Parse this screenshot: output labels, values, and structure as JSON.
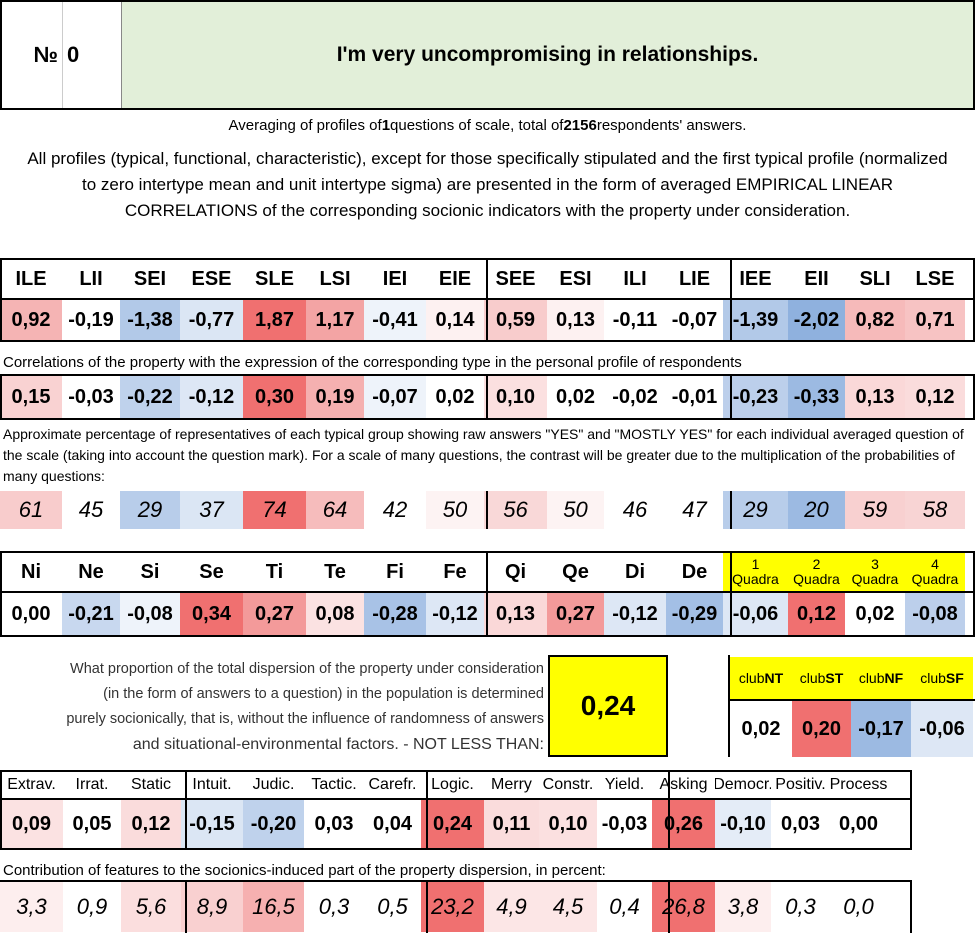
{
  "header": {
    "num_label": "№",
    "num_value": "0",
    "title": "I'm very uncompromising in relationships."
  },
  "summary": {
    "p1": "Averaging of profiles of ",
    "questions": "1",
    "p2": " questions of scale, total of ",
    "respondents": "2156",
    "p3": " respondents' answers."
  },
  "intro": "All profiles (typical, functional, characteristic), except for those specifically stipulated and the first typical profile (normalized to zero intertype mean and unit intertype sigma) are presented in the form of averaged EMPIRICAL LINEAR CORRELATIONS of the corresponding socionic indicators with the property under consideration.",
  "types": [
    "ILE",
    "LII",
    "SEI",
    "ESE",
    "SLE",
    "LSI",
    "IEI",
    "EIE",
    "SEE",
    "ESI",
    "ILI",
    "LIE",
    "IEE",
    "EII",
    "SLI",
    "LSE"
  ],
  "type_profile": [
    {
      "v": "0,92",
      "c": "#f5b4b4"
    },
    {
      "v": "-0,19",
      "c": "#ffffff"
    },
    {
      "v": "-1,38",
      "c": "#b2c9e8"
    },
    {
      "v": "-0,77",
      "c": "#dbe6f4"
    },
    {
      "v": "1,87",
      "c": "#f07070"
    },
    {
      "v": "1,17",
      "c": "#f3a4a4"
    },
    {
      "v": "-0,41",
      "c": "#eef3fa"
    },
    {
      "v": "0,14",
      "c": "#fdf1f1"
    },
    {
      "v": "0,59",
      "c": "#f8cccc"
    },
    {
      "v": "0,13",
      "c": "#fdf1f1"
    },
    {
      "v": "-0,11",
      "c": "#ffffff"
    },
    {
      "v": "-0,07",
      "c": "#ffffff"
    },
    {
      "v": "-1,39",
      "c": "#b2c9e8"
    },
    {
      "v": "-2,02",
      "c": "#8fb1de"
    },
    {
      "v": "0,82",
      "c": "#f6baba"
    },
    {
      "v": "0,71",
      "c": "#f7c3c3"
    }
  ],
  "corr_caption": "Correlations of the property with the expression of the corresponding type in the personal profile of respondents",
  "type_corr": [
    {
      "v": "0,15",
      "c": "#f9d2d2"
    },
    {
      "v": "-0,03",
      "c": "#ffffff"
    },
    {
      "v": "-0,22",
      "c": "#bfd2ec"
    },
    {
      "v": "-0,12",
      "c": "#dde7f5"
    },
    {
      "v": "0,30",
      "c": "#f07070"
    },
    {
      "v": "0,19",
      "c": "#f5b0b0"
    },
    {
      "v": "-0,07",
      "c": "#eef3fa"
    },
    {
      "v": "0,02",
      "c": "#ffffff"
    },
    {
      "v": "0,10",
      "c": "#fbe0e0"
    },
    {
      "v": "0,02",
      "c": "#ffffff"
    },
    {
      "v": "-0,02",
      "c": "#ffffff"
    },
    {
      "v": "-0,01",
      "c": "#ffffff"
    },
    {
      "v": "-0,23",
      "c": "#bccfeb"
    },
    {
      "v": "-0,33",
      "c": "#9cbae2"
    },
    {
      "v": "0,13",
      "c": "#fad8d8"
    },
    {
      "v": "0,12",
      "c": "#fadcdc"
    }
  ],
  "pct_caption": "Approximate percentage of representatives of each typical group showing raw answers \"YES\" and \"MOSTLY YES\" for each individual averaged question of the scale (taking into account the question mark). For a scale of many questions, the contrast will be greater due to the multiplication of the probabilities of many questions:",
  "type_pct": [
    {
      "v": "61",
      "c": "#f8cccc"
    },
    {
      "v": "45",
      "c": "#ffffff"
    },
    {
      "v": "29",
      "c": "#b8cdea"
    },
    {
      "v": "37",
      "c": "#dbe6f4"
    },
    {
      "v": "74",
      "c": "#f07070"
    },
    {
      "v": "64",
      "c": "#f6bcbc"
    },
    {
      "v": "42",
      "c": "#ffffff"
    },
    {
      "v": "50",
      "c": "#fdf3f3"
    },
    {
      "v": "56",
      "c": "#f9d8d8"
    },
    {
      "v": "50",
      "c": "#fdf3f3"
    },
    {
      "v": "46",
      "c": "#ffffff"
    },
    {
      "v": "47",
      "c": "#ffffff"
    },
    {
      "v": "29",
      "c": "#b8cdea"
    },
    {
      "v": "20",
      "c": "#9cbae2"
    },
    {
      "v": "59",
      "c": "#f8d0d0"
    },
    {
      "v": "58",
      "c": "#f8d4d4"
    }
  ],
  "functions": [
    "Ni",
    "Ne",
    "Si",
    "Se",
    "Ti",
    "Te",
    "Fi",
    "Fe",
    "Qi",
    "Qe",
    "Di",
    "De"
  ],
  "quadras": [
    {
      "n": "1",
      "l": "Quadra"
    },
    {
      "n": "2",
      "l": "Quadra"
    },
    {
      "n": "3",
      "l": "Quadra"
    },
    {
      "n": "4",
      "l": "Quadra"
    }
  ],
  "func_values": [
    {
      "v": "0,00",
      "c": "#ffffff"
    },
    {
      "v": "-0,21",
      "c": "#c8d8ef"
    },
    {
      "v": "-0,08",
      "c": "#eef3fa"
    },
    {
      "v": "0,34",
      "c": "#f07070"
    },
    {
      "v": "0,27",
      "c": "#f39a9a"
    },
    {
      "v": "0,08",
      "c": "#fbe2e2"
    },
    {
      "v": "-0,28",
      "c": "#a8c2e6"
    },
    {
      "v": "-0,12",
      "c": "#dde7f5"
    },
    {
      "v": "0,13",
      "c": "#fad8d8"
    },
    {
      "v": "0,27",
      "c": "#f39a9a"
    },
    {
      "v": "-0,12",
      "c": "#dde7f5"
    },
    {
      "v": "-0,29",
      "c": "#a3bfe5"
    },
    {
      "v": "-0,06",
      "c": "#dde7f5"
    },
    {
      "v": "0,12",
      "c": "#f07070"
    },
    {
      "v": "0,02",
      "c": "#ffffff"
    },
    {
      "v": "-0,08",
      "c": "#bccfeb"
    }
  ],
  "dispersion": {
    "lines": [
      "What proportion of the total dispersion of the property under consideration",
      "(in the form of answers to a question) in the population is determined",
      "purely socionically, that is, without the influence of randomness of answers",
      "and situational-environmental factors. - NOT LESS THAN:"
    ],
    "value": "0,24"
  },
  "clubs": [
    {
      "pre": "club",
      "b": "NT",
      "v": "0,02",
      "c": "#ffffff"
    },
    {
      "pre": "club",
      "b": "ST",
      "v": "0,20",
      "c": "#f07070"
    },
    {
      "pre": "club",
      "b": "NF",
      "v": "-0,17",
      "c": "#9cbae2"
    },
    {
      "pre": "club",
      "b": "SF",
      "v": "-0,06",
      "c": "#dde7f5"
    }
  ],
  "features": [
    "Extrav.",
    "Irrat.",
    "Static",
    "Intuit.",
    "Judic.",
    "Tactic.",
    "Carefr.",
    "Logic.",
    "Merry",
    "Constr.",
    "Yield.",
    "Asking",
    "Democr.",
    "Positiv.",
    "Process"
  ],
  "feat_values": [
    {
      "v": "0,09",
      "c": "#fbe2e2"
    },
    {
      "v": "0,05",
      "c": "#ffffff"
    },
    {
      "v": "0,12",
      "c": "#fadcdc"
    },
    {
      "v": "-0,15",
      "c": "#dbe6f4"
    },
    {
      "v": "-0,20",
      "c": "#bfd2ec"
    },
    {
      "v": "0,03",
      "c": "#ffffff"
    },
    {
      "v": "0,04",
      "c": "#ffffff"
    },
    {
      "v": "0,24",
      "c": "#f07070"
    },
    {
      "v": "0,11",
      "c": "#fadcdc"
    },
    {
      "v": "0,10",
      "c": "#fbe0e0"
    },
    {
      "v": "-0,03",
      "c": "#ffffff"
    },
    {
      "v": "0,26",
      "c": "#f07070"
    },
    {
      "v": "-0,10",
      "c": "#e4ecf7"
    },
    {
      "v": "0,03",
      "c": "#ffffff"
    },
    {
      "v": "0,00",
      "c": "#ffffff"
    }
  ],
  "contrib_caption": "Contribution of features to the socionics-induced part of the property dispersion, in percent:",
  "feat_contrib": [
    {
      "v": "3,3",
      "c": "#fdeeee"
    },
    {
      "v": "0,9",
      "c": "#ffffff"
    },
    {
      "v": "5,6",
      "c": "#fbdede"
    },
    {
      "v": "8,9",
      "c": "#f9d0d0"
    },
    {
      "v": "16,5",
      "c": "#f6b0b0"
    },
    {
      "v": "0,3",
      "c": "#ffffff"
    },
    {
      "v": "0,5",
      "c": "#ffffff"
    },
    {
      "v": "23,2",
      "c": "#f07070"
    },
    {
      "v": "4,9",
      "c": "#fce6e6"
    },
    {
      "v": "4,5",
      "c": "#fce6e6"
    },
    {
      "v": "0,4",
      "c": "#ffffff"
    },
    {
      "v": "26,8",
      "c": "#f07070"
    },
    {
      "v": "3,8",
      "c": "#fdeeee"
    },
    {
      "v": "0,3",
      "c": "#ffffff"
    },
    {
      "v": "0,0",
      "c": "#ffffff"
    }
  ],
  "colors": {
    "header_green": "#e2efd9",
    "yellow": "#ffff00",
    "pos": "#f07070",
    "neg": "#8fb1de"
  }
}
